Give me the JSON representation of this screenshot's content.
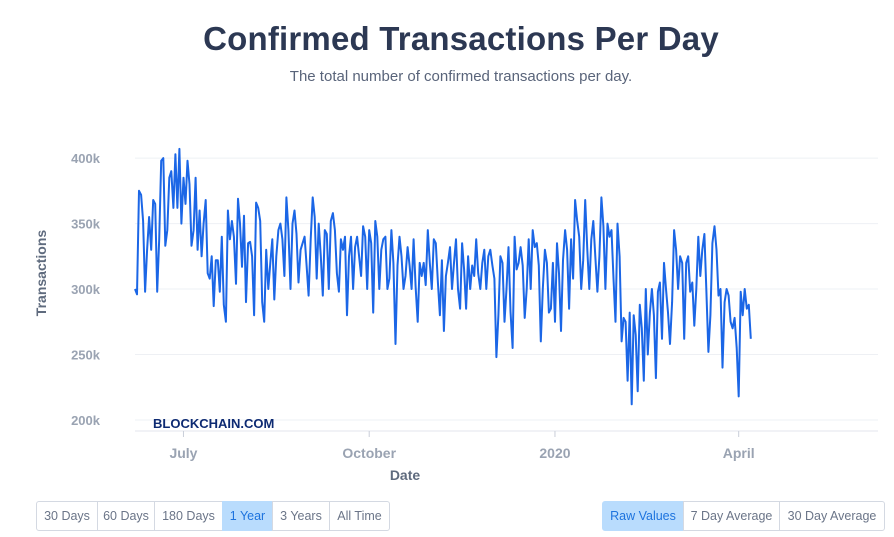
{
  "page": {
    "title": "Confirmed Transactions Per Day",
    "subtitle": "The total number of confirmed transactions per day."
  },
  "watermark": "BLOCKCHAIN.COM",
  "time_buttons": [
    {
      "label": "30 Days",
      "active": false
    },
    {
      "label": "60 Days",
      "active": false
    },
    {
      "label": "180 Days",
      "active": false
    },
    {
      "label": "1 Year",
      "active": true
    },
    {
      "label": "3 Years",
      "active": false
    },
    {
      "label": "All Time",
      "active": false
    }
  ],
  "mode_buttons": [
    {
      "label": "Raw Values",
      "active": true
    },
    {
      "label": "7 Day Average",
      "active": false
    },
    {
      "label": "30 Day Average",
      "active": false
    }
  ],
  "colors": {
    "line": "#1b66e6",
    "accent_bg": "#b9dcfd",
    "accent_text": "#1d73de",
    "title": "#2c3853"
  },
  "chart_data": {
    "type": "line",
    "title": "Confirmed Transactions Per Day",
    "subtitle": "The total number of confirmed transactions per day.",
    "xlabel": "Date",
    "ylabel": "Transactions",
    "ylim": [
      200000,
      410000
    ],
    "yticks": [
      200000,
      250000,
      300000,
      350000,
      400000
    ],
    "ytick_labels": [
      "200k",
      "250k",
      "300k",
      "350k",
      "400k"
    ],
    "xlim": [
      "2019-06-07",
      "2020-06-09"
    ],
    "xticks": [
      "2019-07-01",
      "2019-10-01",
      "2020-01-01",
      "2020-04-01"
    ],
    "xtick_labels": [
      "July",
      "October",
      "2020",
      "April"
    ],
    "grid": true,
    "series": [
      {
        "x_start": "2019-06-07",
        "x_step_days": 1,
        "values": [
          300000,
          296000,
          375000,
          372000,
          352000,
          298000,
          330000,
          355000,
          330000,
          368000,
          365000,
          298000,
          338000,
          398000,
          400000,
          333000,
          345000,
          385000,
          390000,
          362000,
          403000,
          362000,
          407000,
          350000,
          385000,
          365000,
          398000,
          380000,
          333000,
          345000,
          385000,
          330000,
          360000,
          325000,
          350000,
          368000,
          312000,
          308000,
          325000,
          287000,
          322000,
          322000,
          298000,
          340000,
          288000,
          275000,
          360000,
          338000,
          352000,
          340000,
          304000,
          369000,
          350000,
          317000,
          356000,
          290000,
          335000,
          336000,
          325000,
          280000,
          366000,
          362000,
          352000,
          290000,
          275000,
          330000,
          300000,
          320000,
          338000,
          292000,
          325000,
          345000,
          350000,
          338000,
          310000,
          370000,
          345000,
          300000,
          350000,
          360000,
          342000,
          305000,
          330000,
          335000,
          340000,
          318000,
          295000,
          338000,
          370000,
          355000,
          308000,
          350000,
          325000,
          295000,
          345000,
          342000,
          300000,
          352000,
          358000,
          345000,
          312000,
          298000,
          338000,
          330000,
          340000,
          280000,
          325000,
          340000,
          300000,
          332000,
          340000,
          325000,
          310000,
          348000,
          340000,
          300000,
          345000,
          335000,
          282000,
          352000,
          340000,
          300000,
          330000,
          338000,
          340000,
          300000,
          308000,
          345000,
          320000,
          258000,
          318000,
          340000,
          325000,
          300000,
          310000,
          332000,
          318000,
          300000,
          338000,
          302000,
          275000,
          320000,
          310000,
          320000,
          303000,
          345000,
          320000,
          300000,
          338000,
          335000,
          305000,
          280000,
          322000,
          268000,
          310000,
          320000,
          332000,
          300000,
          320000,
          338000,
          300000,
          285000,
          335000,
          315000,
          285000,
          325000,
          300000,
          318000,
          310000,
          338000,
          312000,
          300000,
          320000,
          330000,
          300000,
          325000,
          330000,
          318000,
          308000,
          248000,
          280000,
          325000,
          320000,
          275000,
          300000,
          332000,
          283000,
          255000,
          340000,
          315000,
          320000,
          332000,
          318000,
          278000,
          300000,
          338000,
          300000,
          345000,
          332000,
          335000,
          318000,
          260000,
          300000,
          330000,
          320000,
          282000,
          285000,
          320000,
          275000,
          335000,
          312000,
          268000,
          322000,
          345000,
          330000,
          285000,
          338000,
          308000,
          368000,
          352000,
          340000,
          300000,
          322000,
          368000,
          330000,
          300000,
          338000,
          352000,
          325000,
          298000,
          325000,
          370000,
          348000,
          300000,
          350000,
          340000,
          345000,
          308000,
          275000,
          350000,
          325000,
          260000,
          278000,
          275000,
          230000,
          282000,
          212000,
          280000,
          265000,
          222000,
          288000,
          270000,
          230000,
          300000,
          250000,
          282000,
          300000,
          280000,
          232000,
          298000,
          305000,
          262000,
          320000,
          300000,
          282000,
          258000,
          290000,
          345000,
          330000,
          300000,
          325000,
          320000,
          262000,
          320000,
          325000,
          298000,
          305000,
          272000,
          300000,
          340000,
          310000,
          330000,
          342000,
          298000,
          252000,
          280000,
          335000,
          348000,
          330000,
          295000,
          300000,
          240000,
          290000,
          300000,
          295000,
          275000,
          270000,
          278000,
          255000,
          218000,
          298000,
          280000,
          300000,
          285000,
          288000,
          262000
        ]
      }
    ]
  }
}
